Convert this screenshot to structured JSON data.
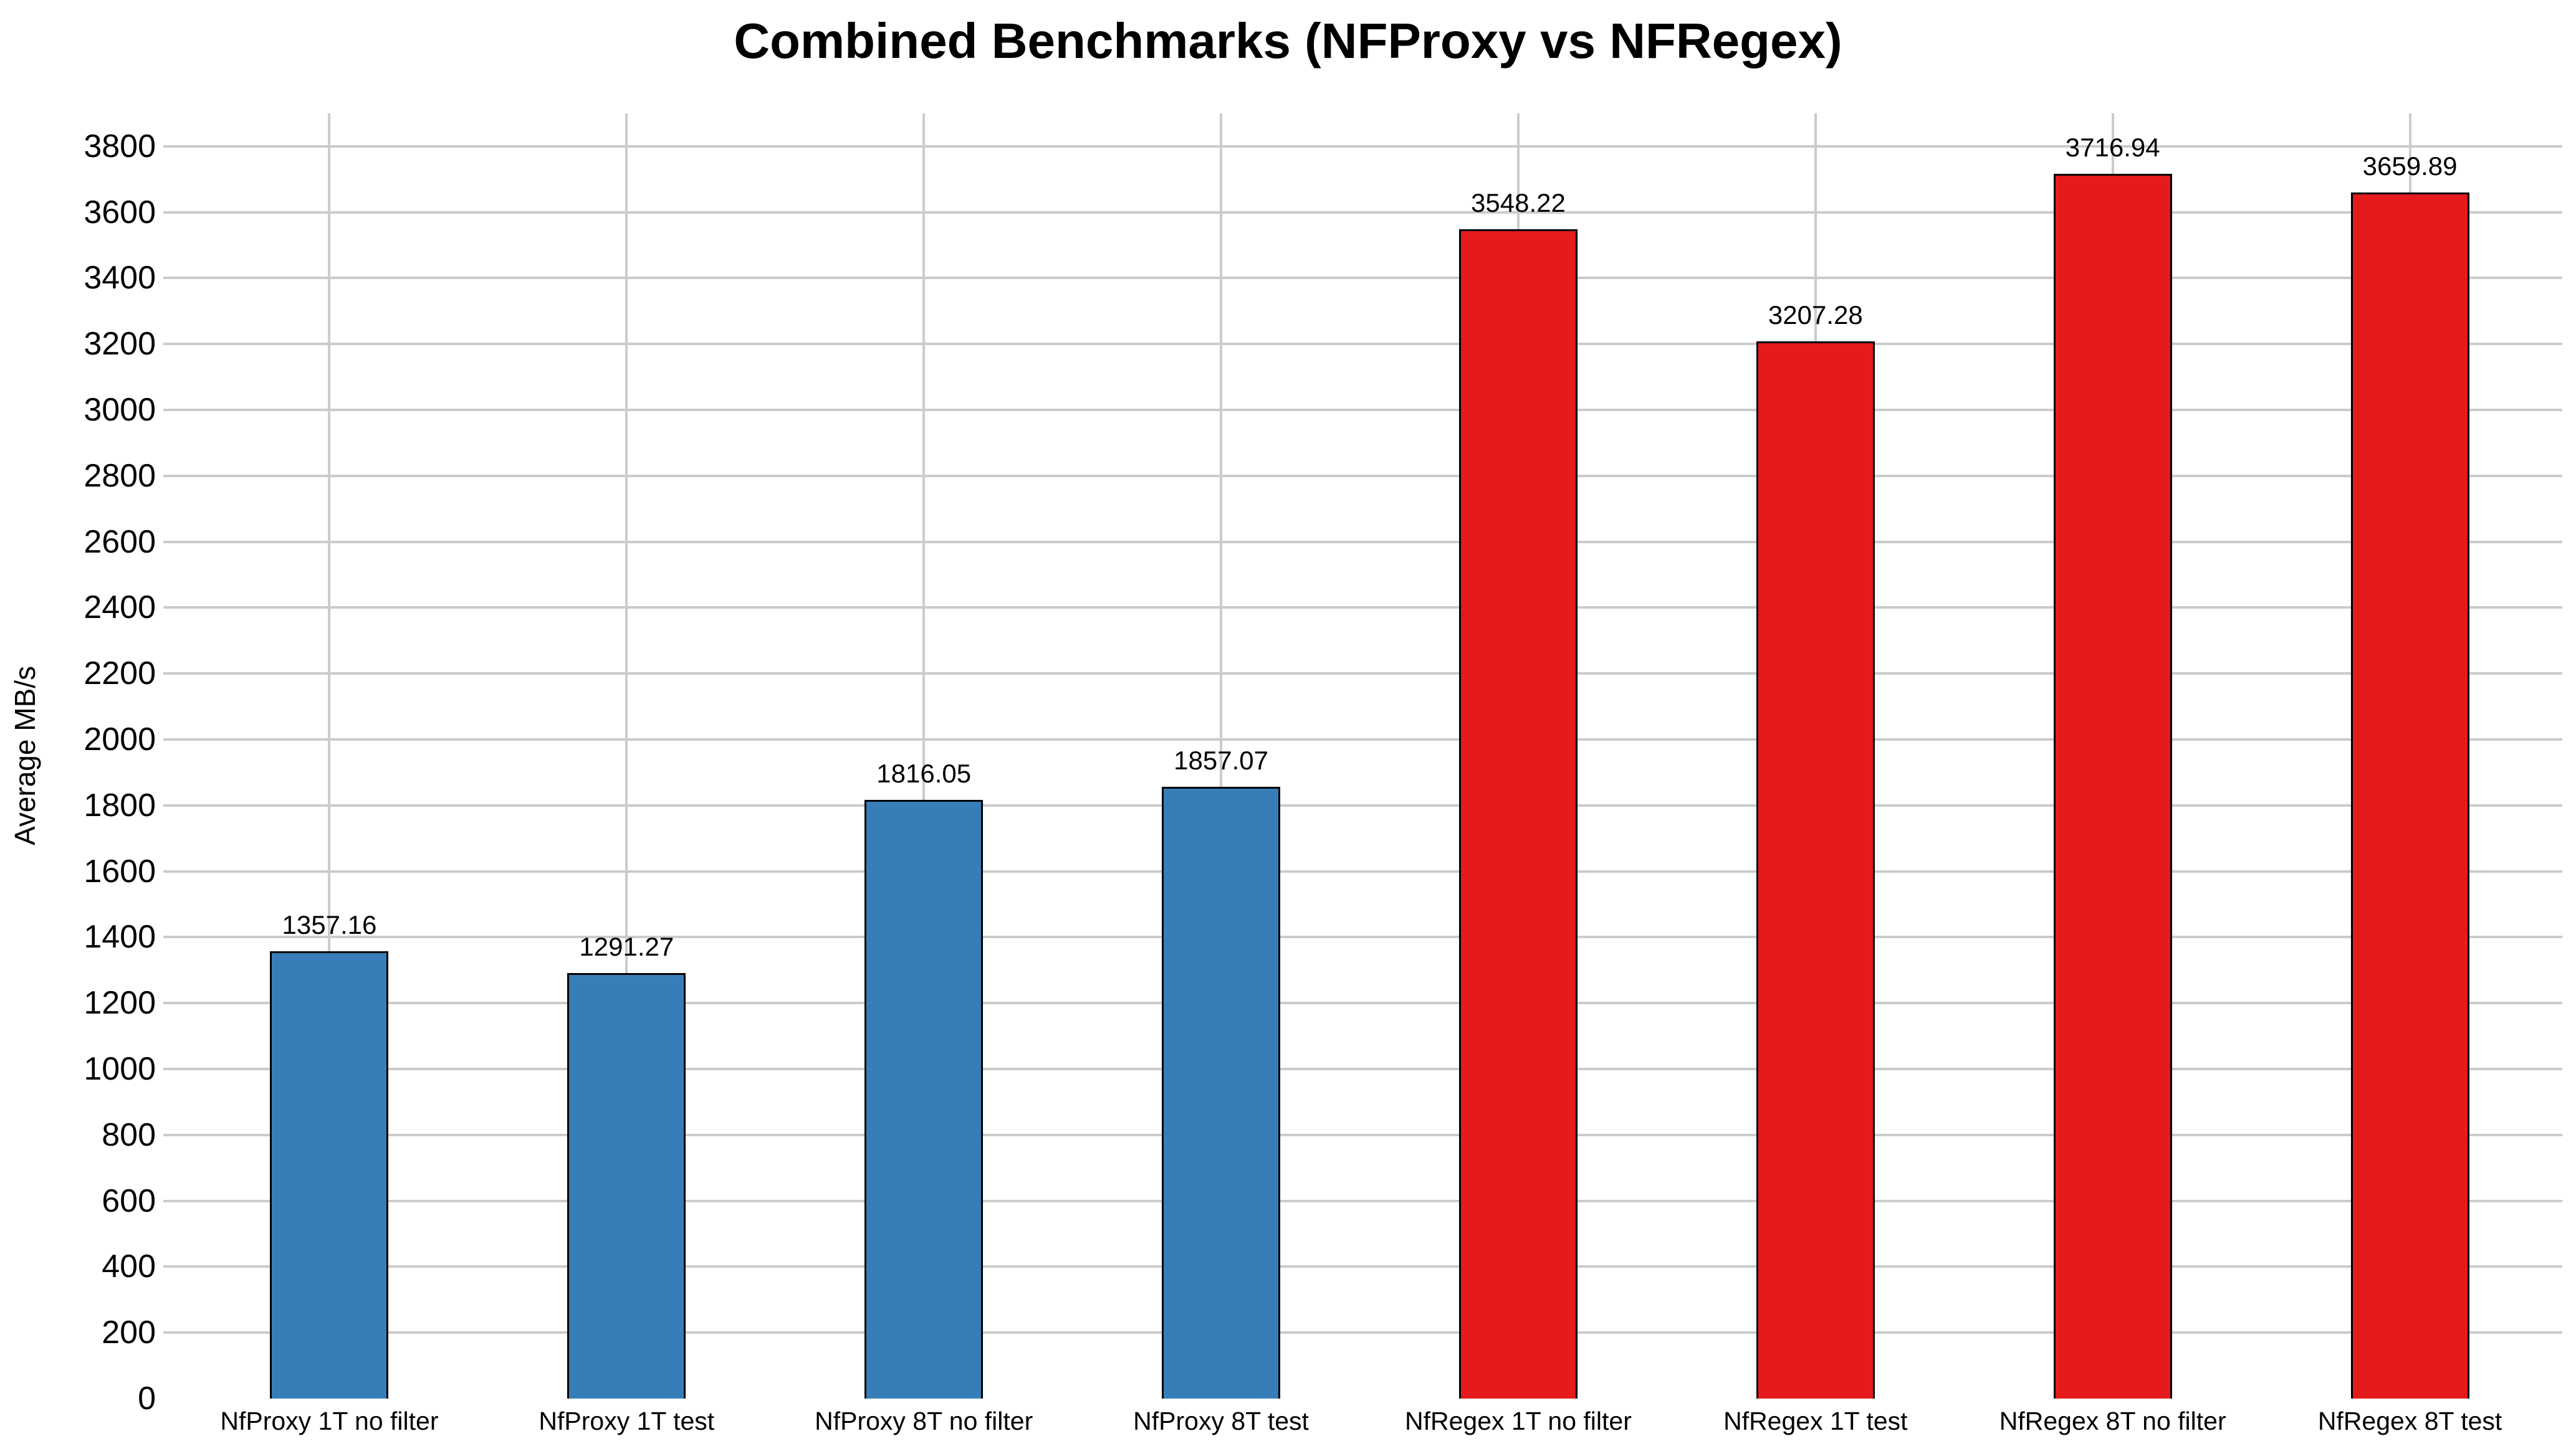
{
  "chart_data": {
    "type": "bar",
    "title": "Combined Benchmarks (NFProxy vs NFRegex)",
    "xlabel": "",
    "ylabel": "Average MB/s",
    "categories": [
      "NfProxy 1T no filter",
      "NfProxy 1T test",
      "NfProxy 8T no filter",
      "NfProxy 8T test",
      "NfRegex 1T no filter",
      "NfRegex 1T test",
      "NfRegex 8T no filter",
      "NfRegex 8T test"
    ],
    "values": [
      1357.16,
      1291.27,
      1816.05,
      1857.07,
      3548.22,
      3207.28,
      3716.94,
      3659.89
    ],
    "bar_colors": [
      "#377eb8",
      "#377eb8",
      "#377eb8",
      "#377eb8",
      "#e41a1c",
      "#e41a1c",
      "#e41a1c",
      "#e41a1c"
    ],
    "series_groups": [
      {
        "name": "NfProxy",
        "color": "#377eb8"
      },
      {
        "name": "NfRegex",
        "color": "#e41a1c"
      }
    ],
    "yticks": [
      0,
      200,
      400,
      600,
      800,
      1000,
      1200,
      1400,
      1600,
      1800,
      2000,
      2200,
      2400,
      2600,
      2800,
      3000,
      3200,
      3400,
      3600,
      3800
    ],
    "ylim": [
      0,
      3900
    ],
    "grid": true,
    "legend_position": "none",
    "bar_border_color": "#000000",
    "grid_color": "#cbcbcb",
    "background_color": "#ffffff",
    "text_color": "#000000"
  }
}
